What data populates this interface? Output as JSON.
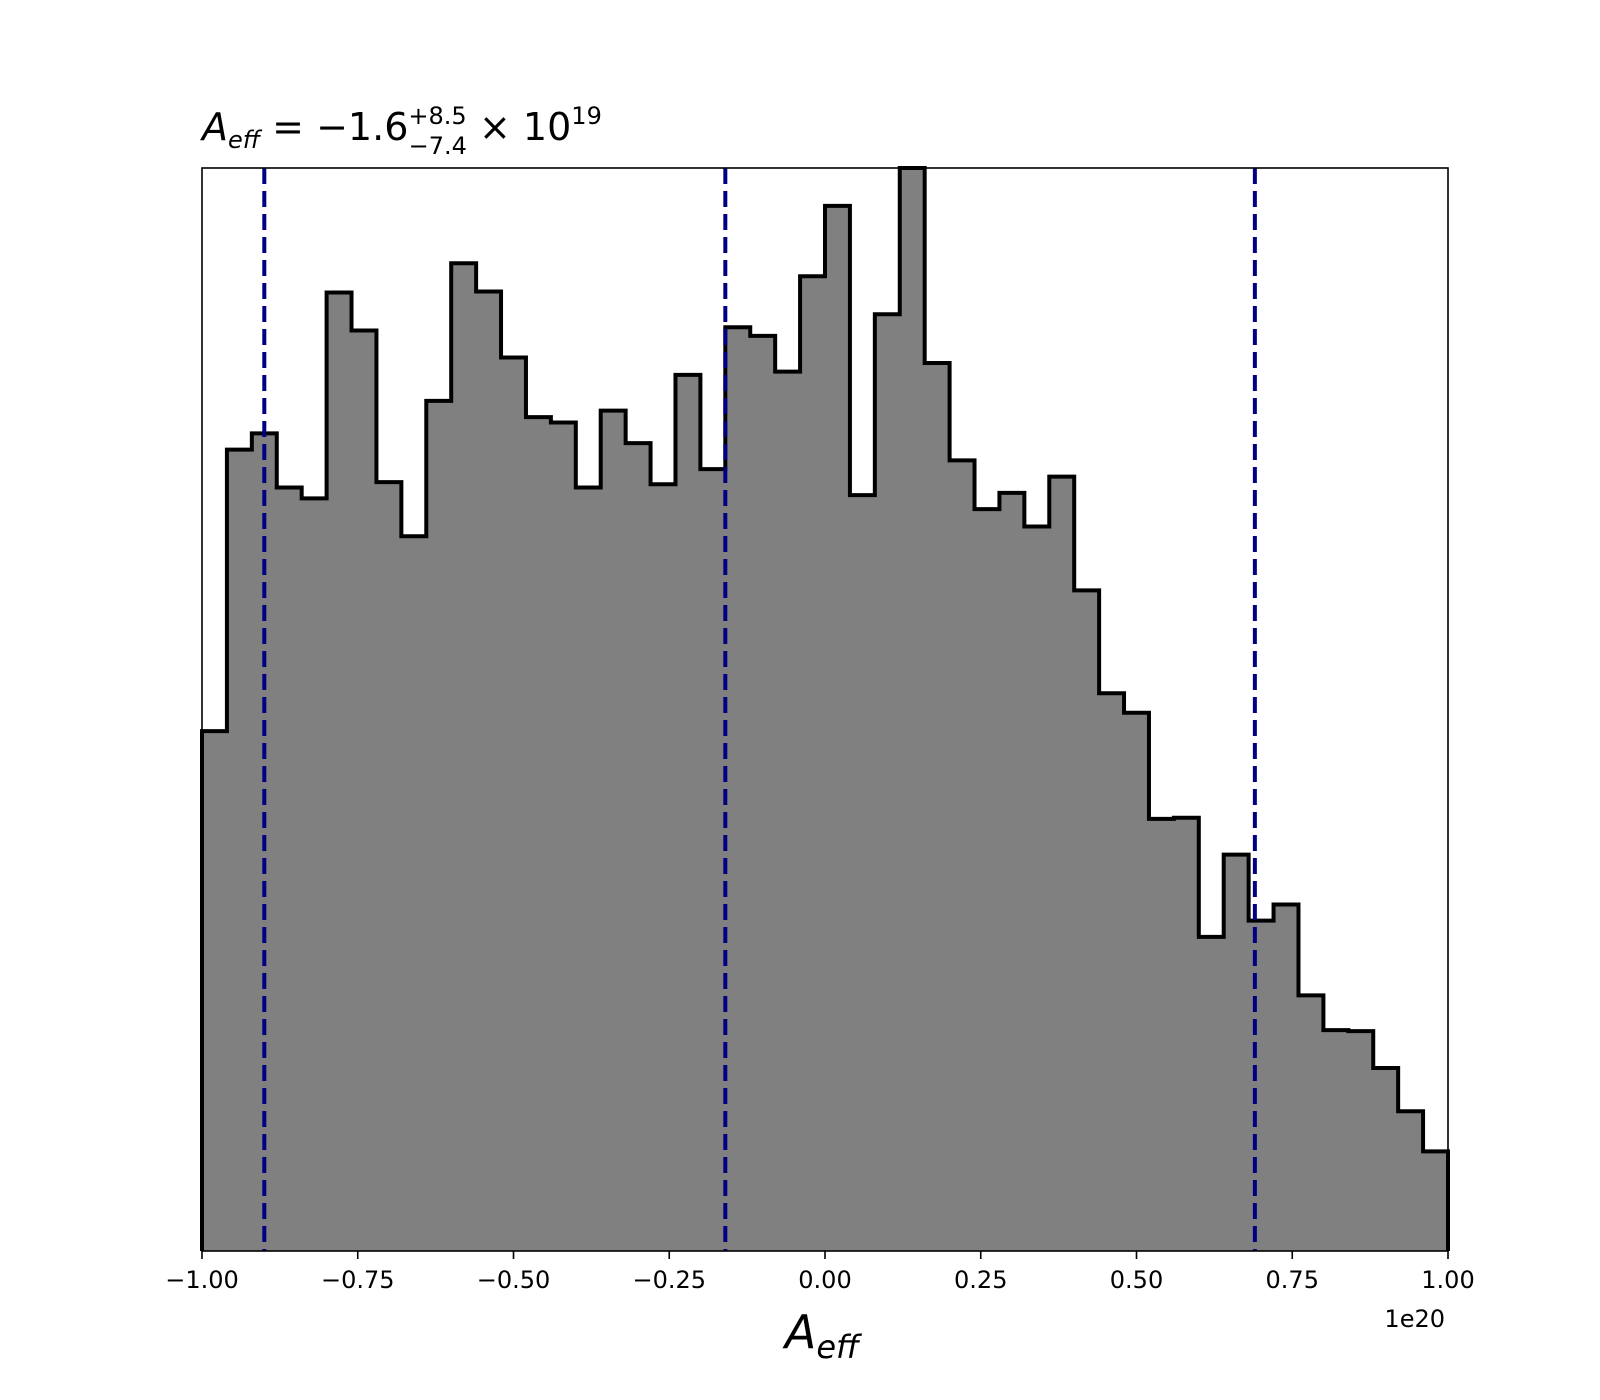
{
  "chart_data": {
    "type": "histogram",
    "title": {
      "symbol": "A",
      "symbol_sub": "eff",
      "equals": " = −1.6",
      "sup": "+8.5",
      "sub": "−7.4",
      "times": " × 10",
      "exp": "19"
    },
    "xlabel": {
      "symbol": "A",
      "sub": "eff"
    },
    "x_offset_label": "1e20",
    "xlim": [
      -1.0,
      1.0
    ],
    "xticks": [
      -1.0,
      -0.75,
      -0.5,
      -0.25,
      0.0,
      0.25,
      0.5,
      0.75,
      1.0
    ],
    "xtick_labels": [
      "−1.00",
      "−0.75",
      "−0.50",
      "−0.25",
      "0.00",
      "0.25",
      "0.50",
      "0.75",
      "1.00"
    ],
    "yticks_visible": false,
    "ylim": [
      0,
      100
    ],
    "bin_edges_start": -1.0,
    "bin_width": 0.04,
    "counts": [
      48,
      74,
      75.5,
      70.5,
      69.5,
      88.5,
      85,
      71,
      66,
      78.5,
      91.2,
      88.6,
      82.5,
      77,
      76.5,
      70.5,
      77.6,
      74.6,
      70.8,
      80.9,
      72.2,
      85.3,
      84.5,
      81.2,
      90,
      96.5,
      69.8,
      86.5,
      100,
      82,
      73,
      68.5,
      70,
      66.9,
      71.5,
      61,
      51.5,
      49.7,
      39.9,
      40,
      29,
      36.6,
      30.5,
      32,
      23.6,
      20.4,
      20.3,
      16.9,
      12.9,
      9.2
    ],
    "fill_color": "#808080",
    "edge_color": "#000000",
    "quantile_lines": [
      -0.9,
      -0.16,
      0.69
    ],
    "quantile_color": "#000080",
    "quantile_style": "dashed"
  }
}
